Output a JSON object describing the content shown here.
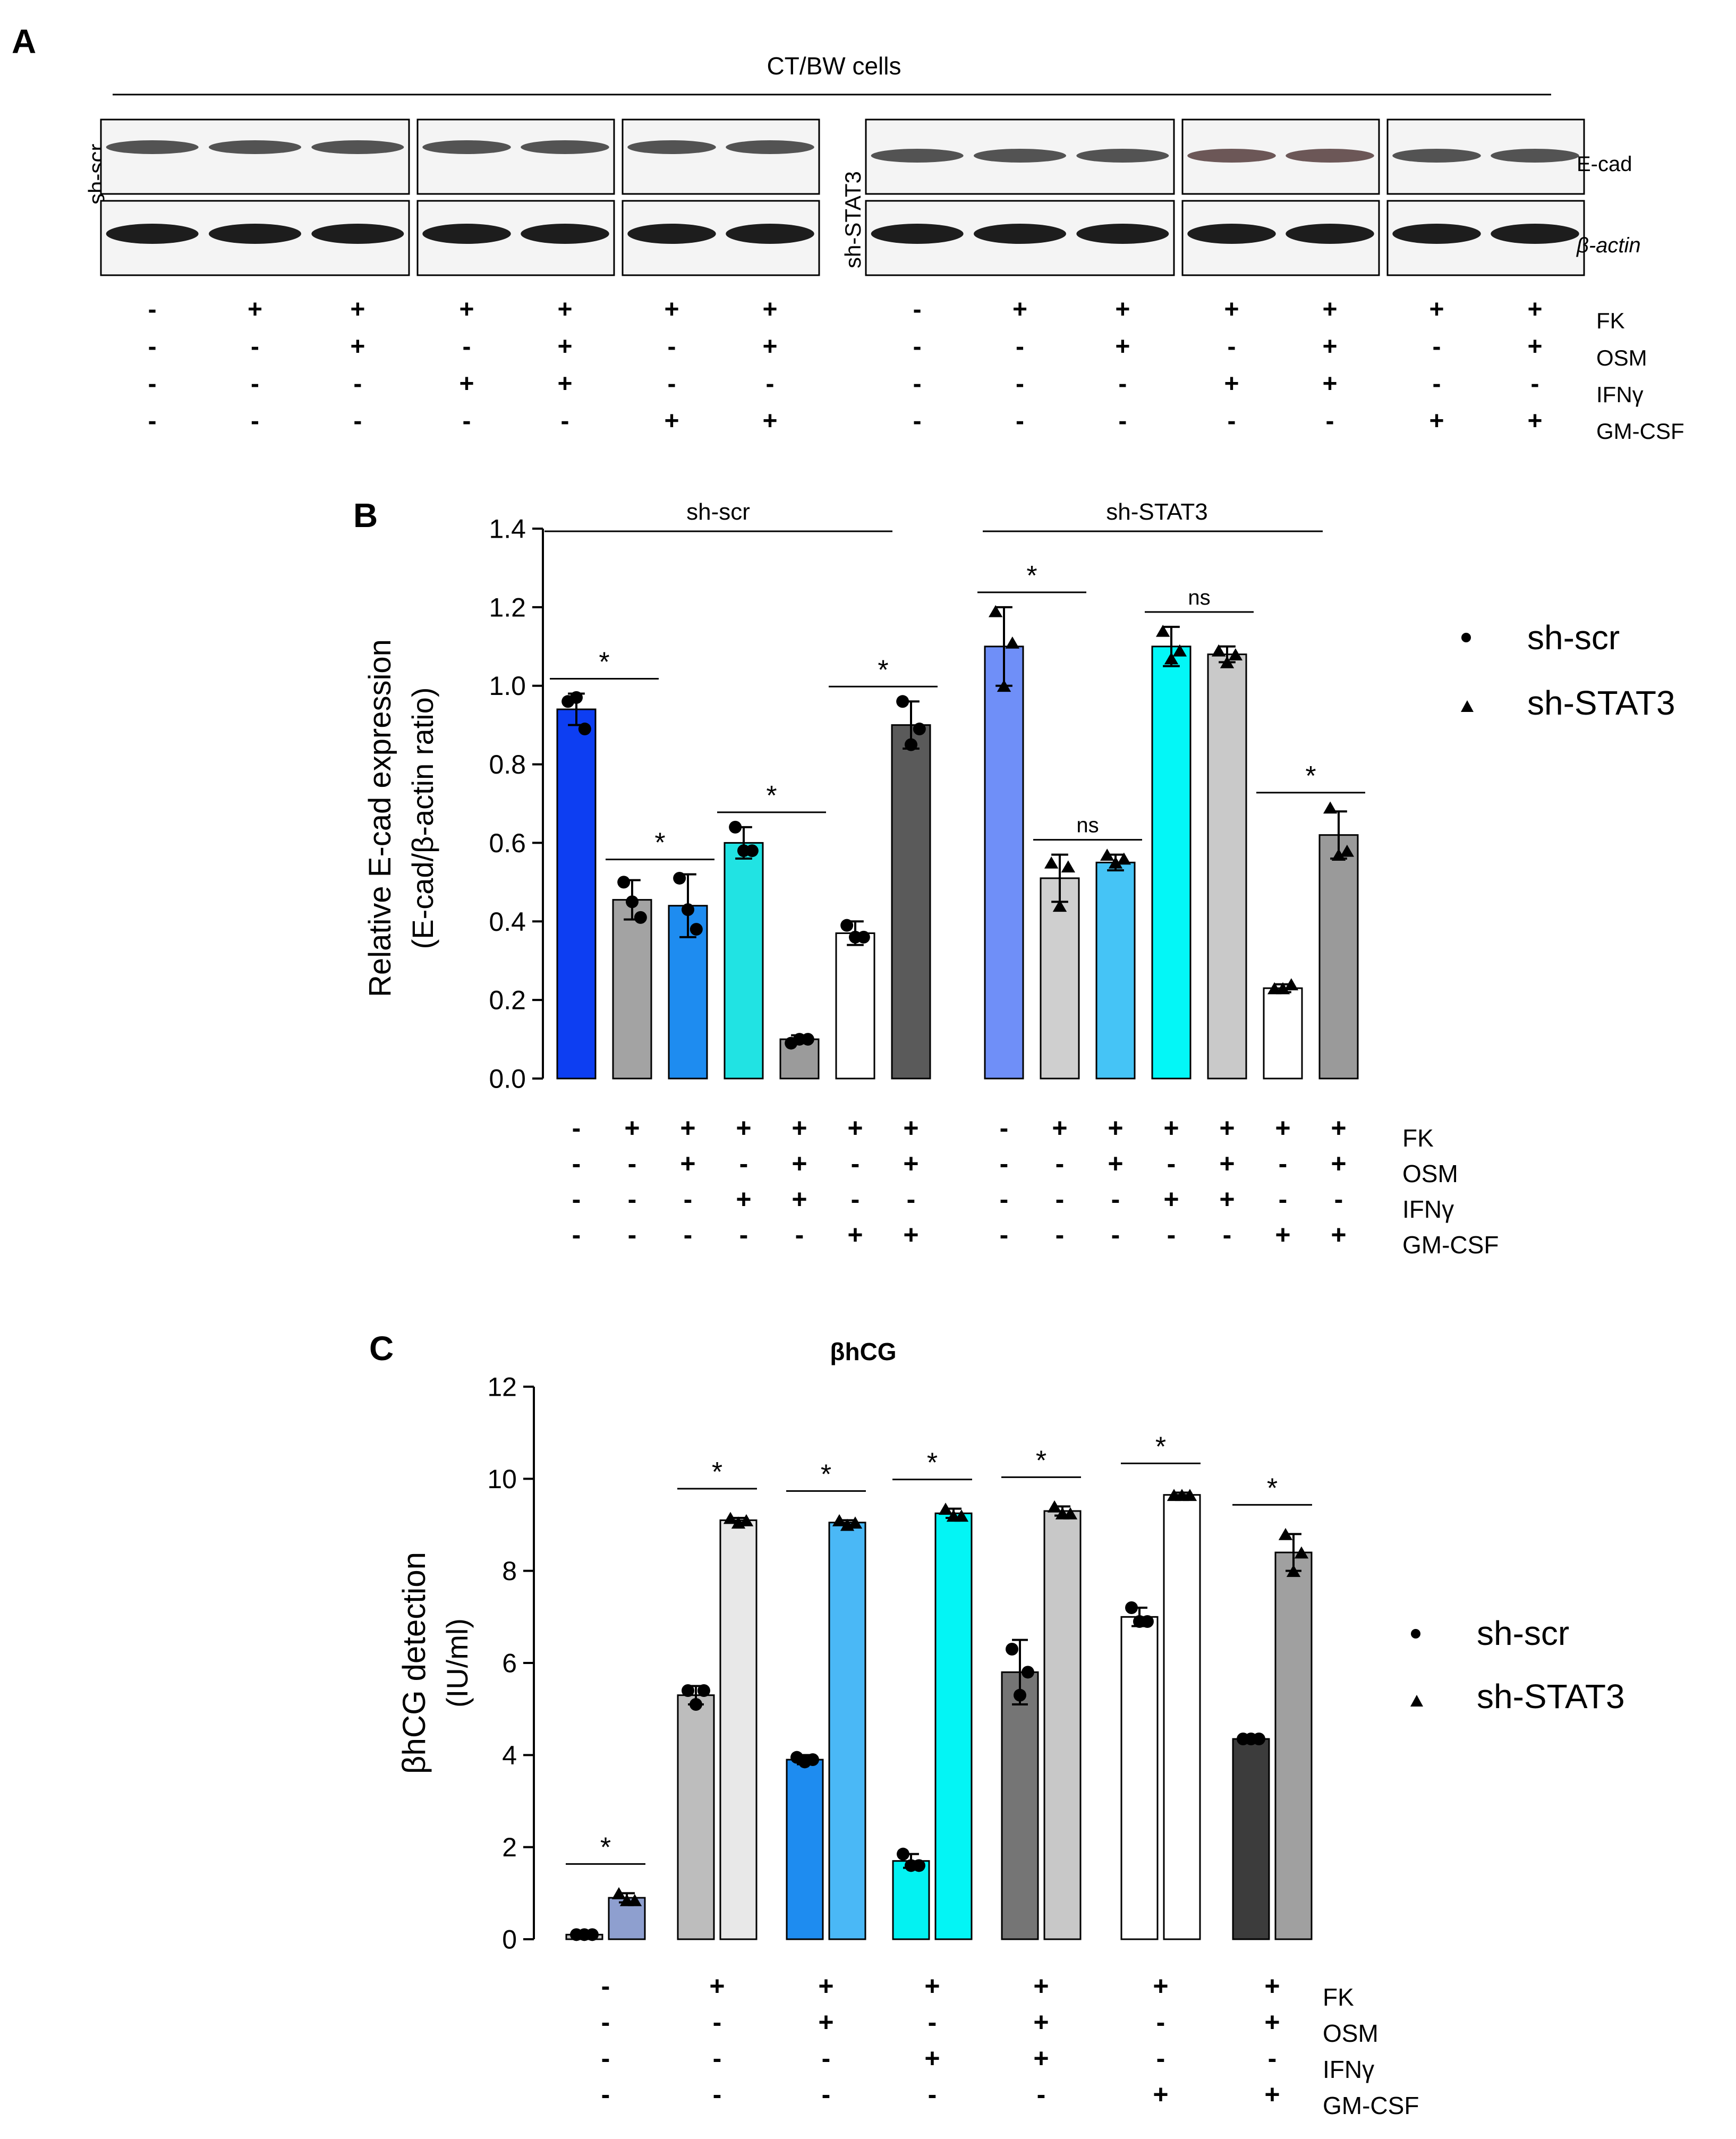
{
  "panel_a": {
    "label": "A",
    "title": "CT/BW cells",
    "rows": [
      {
        "name": "sh-scr",
        "lane_groups": [
          3,
          2,
          2
        ]
      },
      {
        "name": "sh-STAT3",
        "lane_groups": [
          3,
          2,
          2
        ]
      }
    ],
    "bands": [
      "E-cad",
      "β-actin"
    ],
    "band_colors": {
      "ecad_dark": "#2a2a2a",
      "ecad_red_tint": "#4a2f2f",
      "actin": "#111111"
    },
    "treatment_names": [
      "FK",
      "OSM",
      "IFNγ",
      "GM-CSF"
    ],
    "treatments": [
      [
        "-",
        "+",
        "+",
        "+",
        "+",
        "+",
        "+",
        "-",
        "+",
        "+",
        "+",
        "+",
        "+",
        "+"
      ],
      [
        "-",
        "-",
        "+",
        "-",
        "+",
        "-",
        "+",
        "-",
        "-",
        "+",
        "-",
        "+",
        "-",
        "+"
      ],
      [
        "-",
        "-",
        "-",
        "+",
        "+",
        "-",
        "-",
        "-",
        "-",
        "-",
        "+",
        "+",
        "-",
        "-"
      ],
      [
        "-",
        "-",
        "-",
        "-",
        "-",
        "+",
        "+",
        "-",
        "-",
        "-",
        "-",
        "-",
        "+",
        "+"
      ]
    ]
  },
  "chart_data": [
    {
      "panel": "B",
      "type": "bar",
      "title": "",
      "xlabel": "",
      "ylabel": "Relative E-cad expression",
      "ylabel2": "(E-cad/β-actin ratio)",
      "ylim": [
        0,
        1.4
      ],
      "yticks": [
        "0.0",
        "0.2",
        "0.4",
        "0.6",
        "0.8",
        "1.0",
        "1.2",
        "1.4"
      ],
      "groups": [
        "sh-scr",
        "sh-STAT3"
      ],
      "legend": [
        {
          "name": "sh-scr",
          "marker": "circle"
        },
        {
          "name": "sh-STAT3",
          "marker": "triangle"
        }
      ],
      "series": [
        {
          "name": "sh-scr",
          "values": [
            0.94,
            0.455,
            0.44,
            0.6,
            0.1,
            0.37,
            0.9
          ],
          "errors": [
            0.04,
            0.05,
            0.08,
            0.04,
            0.01,
            0.03,
            0.06
          ],
          "points": [
            [
              0.96,
              0.97,
              0.89
            ],
            [
              0.5,
              0.45,
              0.41
            ],
            [
              0.51,
              0.43,
              0.38
            ],
            [
              0.64,
              0.58,
              0.58
            ],
            [
              0.09,
              0.1,
              0.1
            ],
            [
              0.39,
              0.36,
              0.36
            ],
            [
              0.96,
              0.85,
              0.89
            ]
          ],
          "colors": [
            "#0d3ef2",
            "#a3a3a3",
            "#1e8cf0",
            "#21e3e3",
            "#9b9b9b",
            "#ffffff",
            "#5a5a5a"
          ]
        },
        {
          "name": "sh-STAT3",
          "values": [
            1.1,
            0.51,
            0.55,
            1.1,
            1.08,
            0.23,
            0.62
          ],
          "errors": [
            0.1,
            0.06,
            0.02,
            0.05,
            0.02,
            0.01,
            0.06
          ],
          "points": [
            [
              1.19,
              1.0,
              1.11
            ],
            [
              0.55,
              0.44,
              0.54
            ],
            [
              0.57,
              0.55,
              0.56
            ],
            [
              1.14,
              1.07,
              1.09
            ],
            [
              1.09,
              1.06,
              1.08
            ],
            [
              0.23,
              0.23,
              0.24
            ],
            [
              0.69,
              0.57,
              0.58
            ]
          ],
          "colors": [
            "#6f8ff8",
            "#cfcfcf",
            "#45c4f6",
            "#03f7f7",
            "#c9c9c9",
            "#ffffff",
            "#9a9a9a"
          ]
        }
      ],
      "significance": [
        {
          "from": [
            0,
            0
          ],
          "to": [
            0,
            1
          ],
          "label": "*"
        },
        {
          "from": [
            0,
            1
          ],
          "to": [
            0,
            2
          ],
          "label": "*"
        },
        {
          "from": [
            0,
            3
          ],
          "to": [
            0,
            4
          ],
          "label": "*"
        },
        {
          "from": [
            0,
            5
          ],
          "to": [
            0,
            6
          ],
          "label": "*"
        },
        {
          "from": [
            1,
            0
          ],
          "to": [
            1,
            1
          ],
          "label": "*"
        },
        {
          "from": [
            1,
            1
          ],
          "to": [
            1,
            2
          ],
          "label": "ns"
        },
        {
          "from": [
            1,
            3
          ],
          "to": [
            1,
            4
          ],
          "label": "ns"
        },
        {
          "from": [
            1,
            5
          ],
          "to": [
            1,
            6
          ],
          "label": "*"
        }
      ],
      "treatment_names": [
        "FK",
        "OSM",
        "IFNγ",
        "GM-CSF"
      ],
      "treatments": [
        [
          "-",
          "+",
          "+",
          "+",
          "+",
          "+",
          "+",
          "-",
          "+",
          "+",
          "+",
          "+",
          "+",
          "+"
        ],
        [
          "-",
          "-",
          "+",
          "-",
          "+",
          "-",
          "+",
          "-",
          "-",
          "+",
          "-",
          "+",
          "-",
          "+"
        ],
        [
          "-",
          "-",
          "-",
          "+",
          "+",
          "-",
          "-",
          "-",
          "-",
          "-",
          "+",
          "+",
          "-",
          "-"
        ],
        [
          "-",
          "-",
          "-",
          "-",
          "-",
          "+",
          "+",
          "-",
          "-",
          "-",
          "-",
          "-",
          "+",
          "+"
        ]
      ]
    },
    {
      "panel": "C",
      "type": "bar",
      "title": "βhCG",
      "xlabel": "",
      "ylabel": "βhCG detection",
      "ylabel2": "(IU/ml)",
      "ylim": [
        0,
        12
      ],
      "yticks": [
        "0",
        "2",
        "4",
        "6",
        "8",
        "10",
        "12"
      ],
      "legend": [
        {
          "name": "sh-scr",
          "marker": "circle"
        },
        {
          "name": "sh-STAT3",
          "marker": "triangle"
        }
      ],
      "series": [
        {
          "name": "sh-scr",
          "values": [
            0.1,
            5.3,
            3.9,
            1.7,
            5.8,
            7.0,
            4.35
          ],
          "errors": [
            0.02,
            0.2,
            0.1,
            0.15,
            0.7,
            0.2,
            0.05
          ],
          "points": [
            [
              0.1,
              0.1,
              0.1
            ],
            [
              5.4,
              5.1,
              5.4
            ],
            [
              3.95,
              3.85,
              3.9
            ],
            [
              1.85,
              1.6,
              1.6
            ],
            [
              6.3,
              5.3,
              5.8
            ],
            [
              7.2,
              6.9,
              6.9
            ],
            [
              4.35,
              4.35,
              4.35
            ]
          ],
          "colors": [
            "#c0c0c0",
            "#bdbdbd",
            "#1e8cf0",
            "#03f2f2",
            "#757575",
            "#ffffff",
            "#3c3c3c"
          ]
        },
        {
          "name": "sh-STAT3",
          "values": [
            0.9,
            9.1,
            9.05,
            9.25,
            9.3,
            9.65,
            8.4
          ],
          "errors": [
            0.1,
            0.05,
            0.05,
            0.1,
            0.1,
            0.05,
            0.4
          ],
          "points": [
            [
              1.0,
              0.85,
              0.85
            ],
            [
              9.15,
              9.05,
              9.1
            ],
            [
              9.1,
              9.0,
              9.05
            ],
            [
              9.35,
              9.2,
              9.2
            ],
            [
              9.4,
              9.25,
              9.25
            ],
            [
              9.65,
              9.65,
              9.65
            ],
            [
              8.8,
              8.0,
              8.4
            ]
          ],
          "colors": [
            "#8e9fcf",
            "#e8e8e8",
            "#4ab8f6",
            "#03f5f5",
            "#c8c8c8",
            "#ffffff",
            "#a0a0a0"
          ]
        }
      ],
      "significance_label": "*",
      "treatment_names": [
        "FK",
        "OSM",
        "IFNγ",
        "GM-CSF"
      ],
      "treatments": [
        [
          "-",
          "+",
          "+",
          "+",
          "+",
          "+",
          "+"
        ],
        [
          "-",
          "-",
          "+",
          "-",
          "+",
          "-",
          "+"
        ],
        [
          "-",
          "-",
          "-",
          "+",
          "+",
          "-",
          "-"
        ],
        [
          "-",
          "-",
          "-",
          "-",
          "-",
          "+",
          "+"
        ]
      ]
    }
  ],
  "panel_labels": {
    "b": "B",
    "c": "C"
  }
}
